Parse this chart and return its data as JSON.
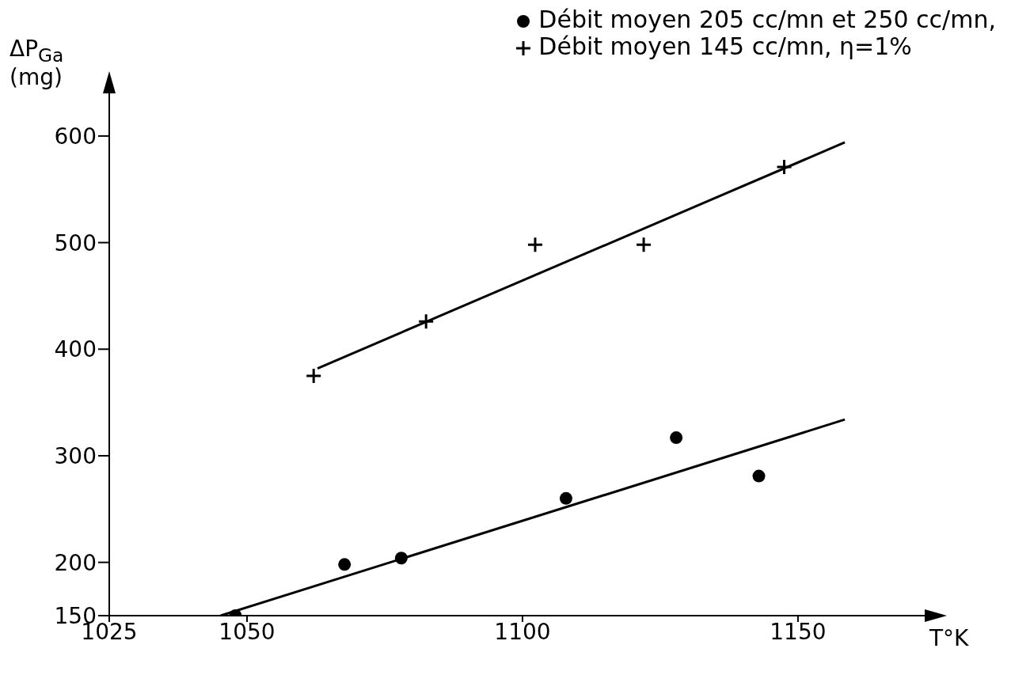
{
  "chart_data": {
    "type": "scatter",
    "xlabel": "T°K",
    "ylabel": "ΔP$_{Ga}$ (mg)",
    "xlim": [
      1025,
      1173
    ],
    "xticks": [
      1025,
      1050,
      1100,
      1150
    ],
    "ylim": [
      150,
      640
    ],
    "yticks": [
      150,
      200,
      300,
      400,
      500,
      600
    ],
    "grid": false,
    "legend": "top right",
    "series": [
      {
        "name": "Débit moyen 205 cc/mn et 250 cc/mn,",
        "marker": "circle",
        "color": "#000000",
        "x": [
          1047.9,
          1067.7,
          1078,
          1107.9,
          1127.9,
          1142.9
        ],
        "values": [
          150,
          198,
          204,
          260,
          317,
          281
        ]
      },
      {
        "name": "Débit moyen 145 cc/mn, η=1%",
        "marker": "cross",
        "color": "#000000",
        "x": [
          1062.1,
          1082.5,
          1102.3,
          1122,
          1147.5
        ],
        "values": [
          375,
          426,
          498,
          498,
          571
        ]
      },
      {
        "type": "line",
        "color": "#000000",
        "line_style": "solid",
        "x": [
          1045.2,
          1158.5
        ],
        "values": [
          150,
          334
        ]
      },
      {
        "type": "line",
        "color": "#000000",
        "line_style": "solid",
        "x": [
          1062.8,
          1158.5
        ],
        "values": [
          382,
          594
        ]
      }
    ]
  }
}
